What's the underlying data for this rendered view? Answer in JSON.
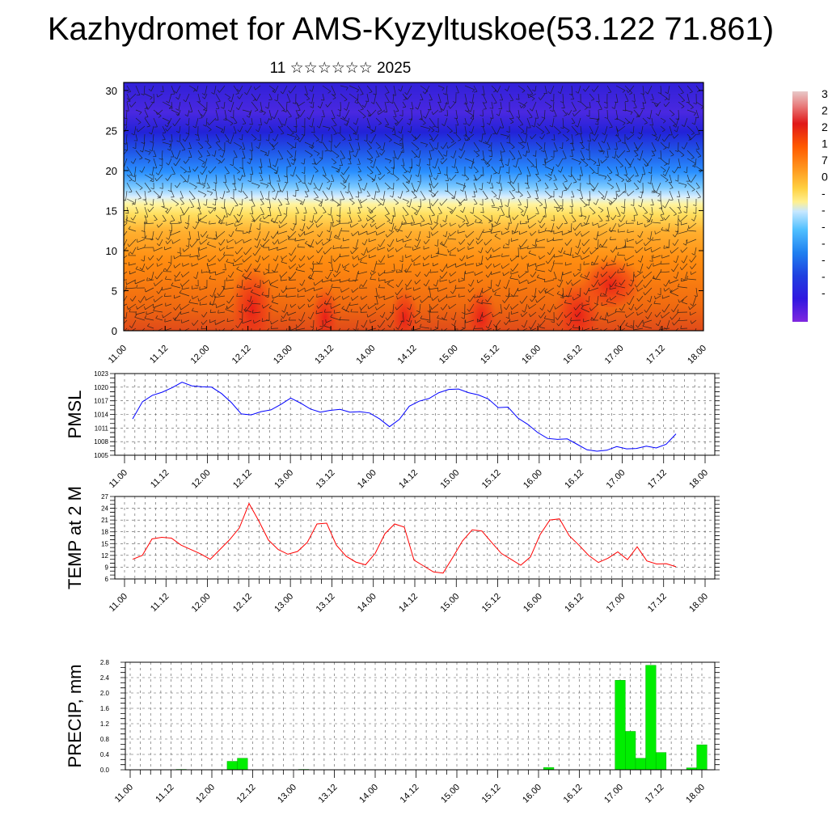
{
  "page": {
    "title": "Kazhydromet for AMS-Kyzyltuskoe(53.122 71.861)",
    "subtitle": "11 ☆☆☆☆☆☆ 2025"
  },
  "chart_data": [
    {
      "type": "heatmap",
      "name": "cross-section",
      "ylim": [
        0,
        31
      ],
      "yticks": [
        0,
        5,
        10,
        15,
        20,
        25,
        30
      ],
      "xlim": [
        0,
        14
      ],
      "xticks": [
        "11.00",
        "11.12",
        "12.00",
        "12.12",
        "13.00",
        "13.12",
        "14.00",
        "14.12",
        "15.00",
        "15.12",
        "16.00",
        "16.12",
        "17.00",
        "17.12",
        "18.00"
      ],
      "colorbar_labels": [
        "3",
        "2",
        "2",
        "1",
        "7",
        "0",
        "-",
        "-",
        "-",
        "-",
        "-",
        "-",
        "-"
      ],
      "colors": [
        "#d8d8d8",
        "#e8a0a0",
        "#e83030",
        "#ff6a00",
        "#ffb040",
        "#ffee70",
        "#c8e8ff",
        "#40b8ff",
        "#1070e8",
        "#3030e0",
        "#8020e0"
      ]
    },
    {
      "type": "line",
      "name": "pmsl",
      "ylabel": "PMSL",
      "ylim": [
        1005,
        1023
      ],
      "yticks": [
        1005,
        1008,
        1011,
        1014,
        1017,
        1020,
        1023
      ],
      "xlim": [
        0,
        14
      ],
      "xticks": [
        "11.00",
        "11.12",
        "12.00",
        "12.12",
        "13.00",
        "13.12",
        "14.00",
        "14.12",
        "15.00",
        "15.12",
        "16.00",
        "16.12",
        "17.00",
        "17.12",
        "18.00"
      ],
      "color": "#0000ff",
      "values": [
        1013.0,
        1016.8,
        1018.2,
        1018.9,
        1019.9,
        1021.1,
        1020.3,
        1020.1,
        1020.0,
        1018.6,
        1016.6,
        1014.1,
        1013.9,
        1014.6,
        1015.0,
        1016.2,
        1017.6,
        1016.5,
        1015.2,
        1014.5,
        1014.9,
        1015.1,
        1014.5,
        1014.6,
        1014.3,
        1013.0,
        1011.3,
        1012.9,
        1015.8,
        1016.9,
        1017.5,
        1018.8,
        1019.5,
        1019.6,
        1018.8,
        1018.3,
        1017.4,
        1015.5,
        1015.6,
        1013.2,
        1011.8,
        1010.0,
        1008.7,
        1008.5,
        1008.6,
        1007.4,
        1006.2,
        1005.9,
        1006.1,
        1006.9,
        1006.4,
        1006.5,
        1007.0,
        1006.6,
        1007.4,
        1009.7
      ]
    },
    {
      "type": "line",
      "name": "temp",
      "ylabel": "TEMP at 2 M",
      "ylim": [
        6,
        27
      ],
      "yticks": [
        6,
        9,
        12,
        15,
        18,
        21,
        24,
        27
      ],
      "xlim": [
        0,
        14
      ],
      "xticks": [
        "11.00",
        "11.12",
        "12.00",
        "12.12",
        "13.00",
        "13.12",
        "14.00",
        "14.12",
        "15.00",
        "15.12",
        "16.00",
        "16.12",
        "17.00",
        "17.12",
        "18.00"
      ],
      "color": "#ff0000",
      "values": [
        11.0,
        12.0,
        16.2,
        16.6,
        16.4,
        14.6,
        13.5,
        12.4,
        11.0,
        13.5,
        16.0,
        19.0,
        25.2,
        20.8,
        15.9,
        13.5,
        12.3,
        13.0,
        15.3,
        20.0,
        20.2,
        14.6,
        11.8,
        10.3,
        9.6,
        12.5,
        17.5,
        20.0,
        19.2,
        10.8,
        9.3,
        7.8,
        7.5,
        11.5,
        15.7,
        18.5,
        18.2,
        15.3,
        12.5,
        11.0,
        9.5,
        11.6,
        17.3,
        21.0,
        21.3,
        17.0,
        14.6,
        12.0,
        10.2,
        11.3,
        12.9,
        10.9,
        14.2,
        10.6,
        9.8,
        9.9,
        9.1
      ]
    },
    {
      "type": "bar",
      "name": "precip",
      "ylabel": "PRECIP, mm",
      "ylim": [
        0,
        2.8
      ],
      "yticks": [
        "0.0",
        "0.4",
        "0.8",
        "1.2",
        "1.6",
        "2.0",
        "2.4",
        "2.8"
      ],
      "xlim": [
        0,
        14
      ],
      "xticks": [
        "11.00",
        "11.12",
        "12.00",
        "12.12",
        "13.00",
        "13.12",
        "14.00",
        "14.12",
        "15.00",
        "15.12",
        "16.00",
        "16.12",
        "17.00",
        "17.12",
        "18.00"
      ],
      "color": "#00ee00",
      "bar_width": 0.25,
      "bars": [
        {
          "x": 1.25,
          "value": 0.01
        },
        {
          "x": 2.5,
          "value": 0.22
        },
        {
          "x": 2.75,
          "value": 0.3
        },
        {
          "x": 4.25,
          "value": 0.01
        },
        {
          "x": 10.25,
          "value": 0.06
        },
        {
          "x": 12.0,
          "value": 2.33
        },
        {
          "x": 12.25,
          "value": 1.0
        },
        {
          "x": 12.5,
          "value": 0.3
        },
        {
          "x": 12.75,
          "value": 2.72
        },
        {
          "x": 13.0,
          "value": 0.45
        },
        {
          "x": 13.75,
          "value": 0.05
        },
        {
          "x": 14.0,
          "value": 0.65
        }
      ]
    }
  ]
}
